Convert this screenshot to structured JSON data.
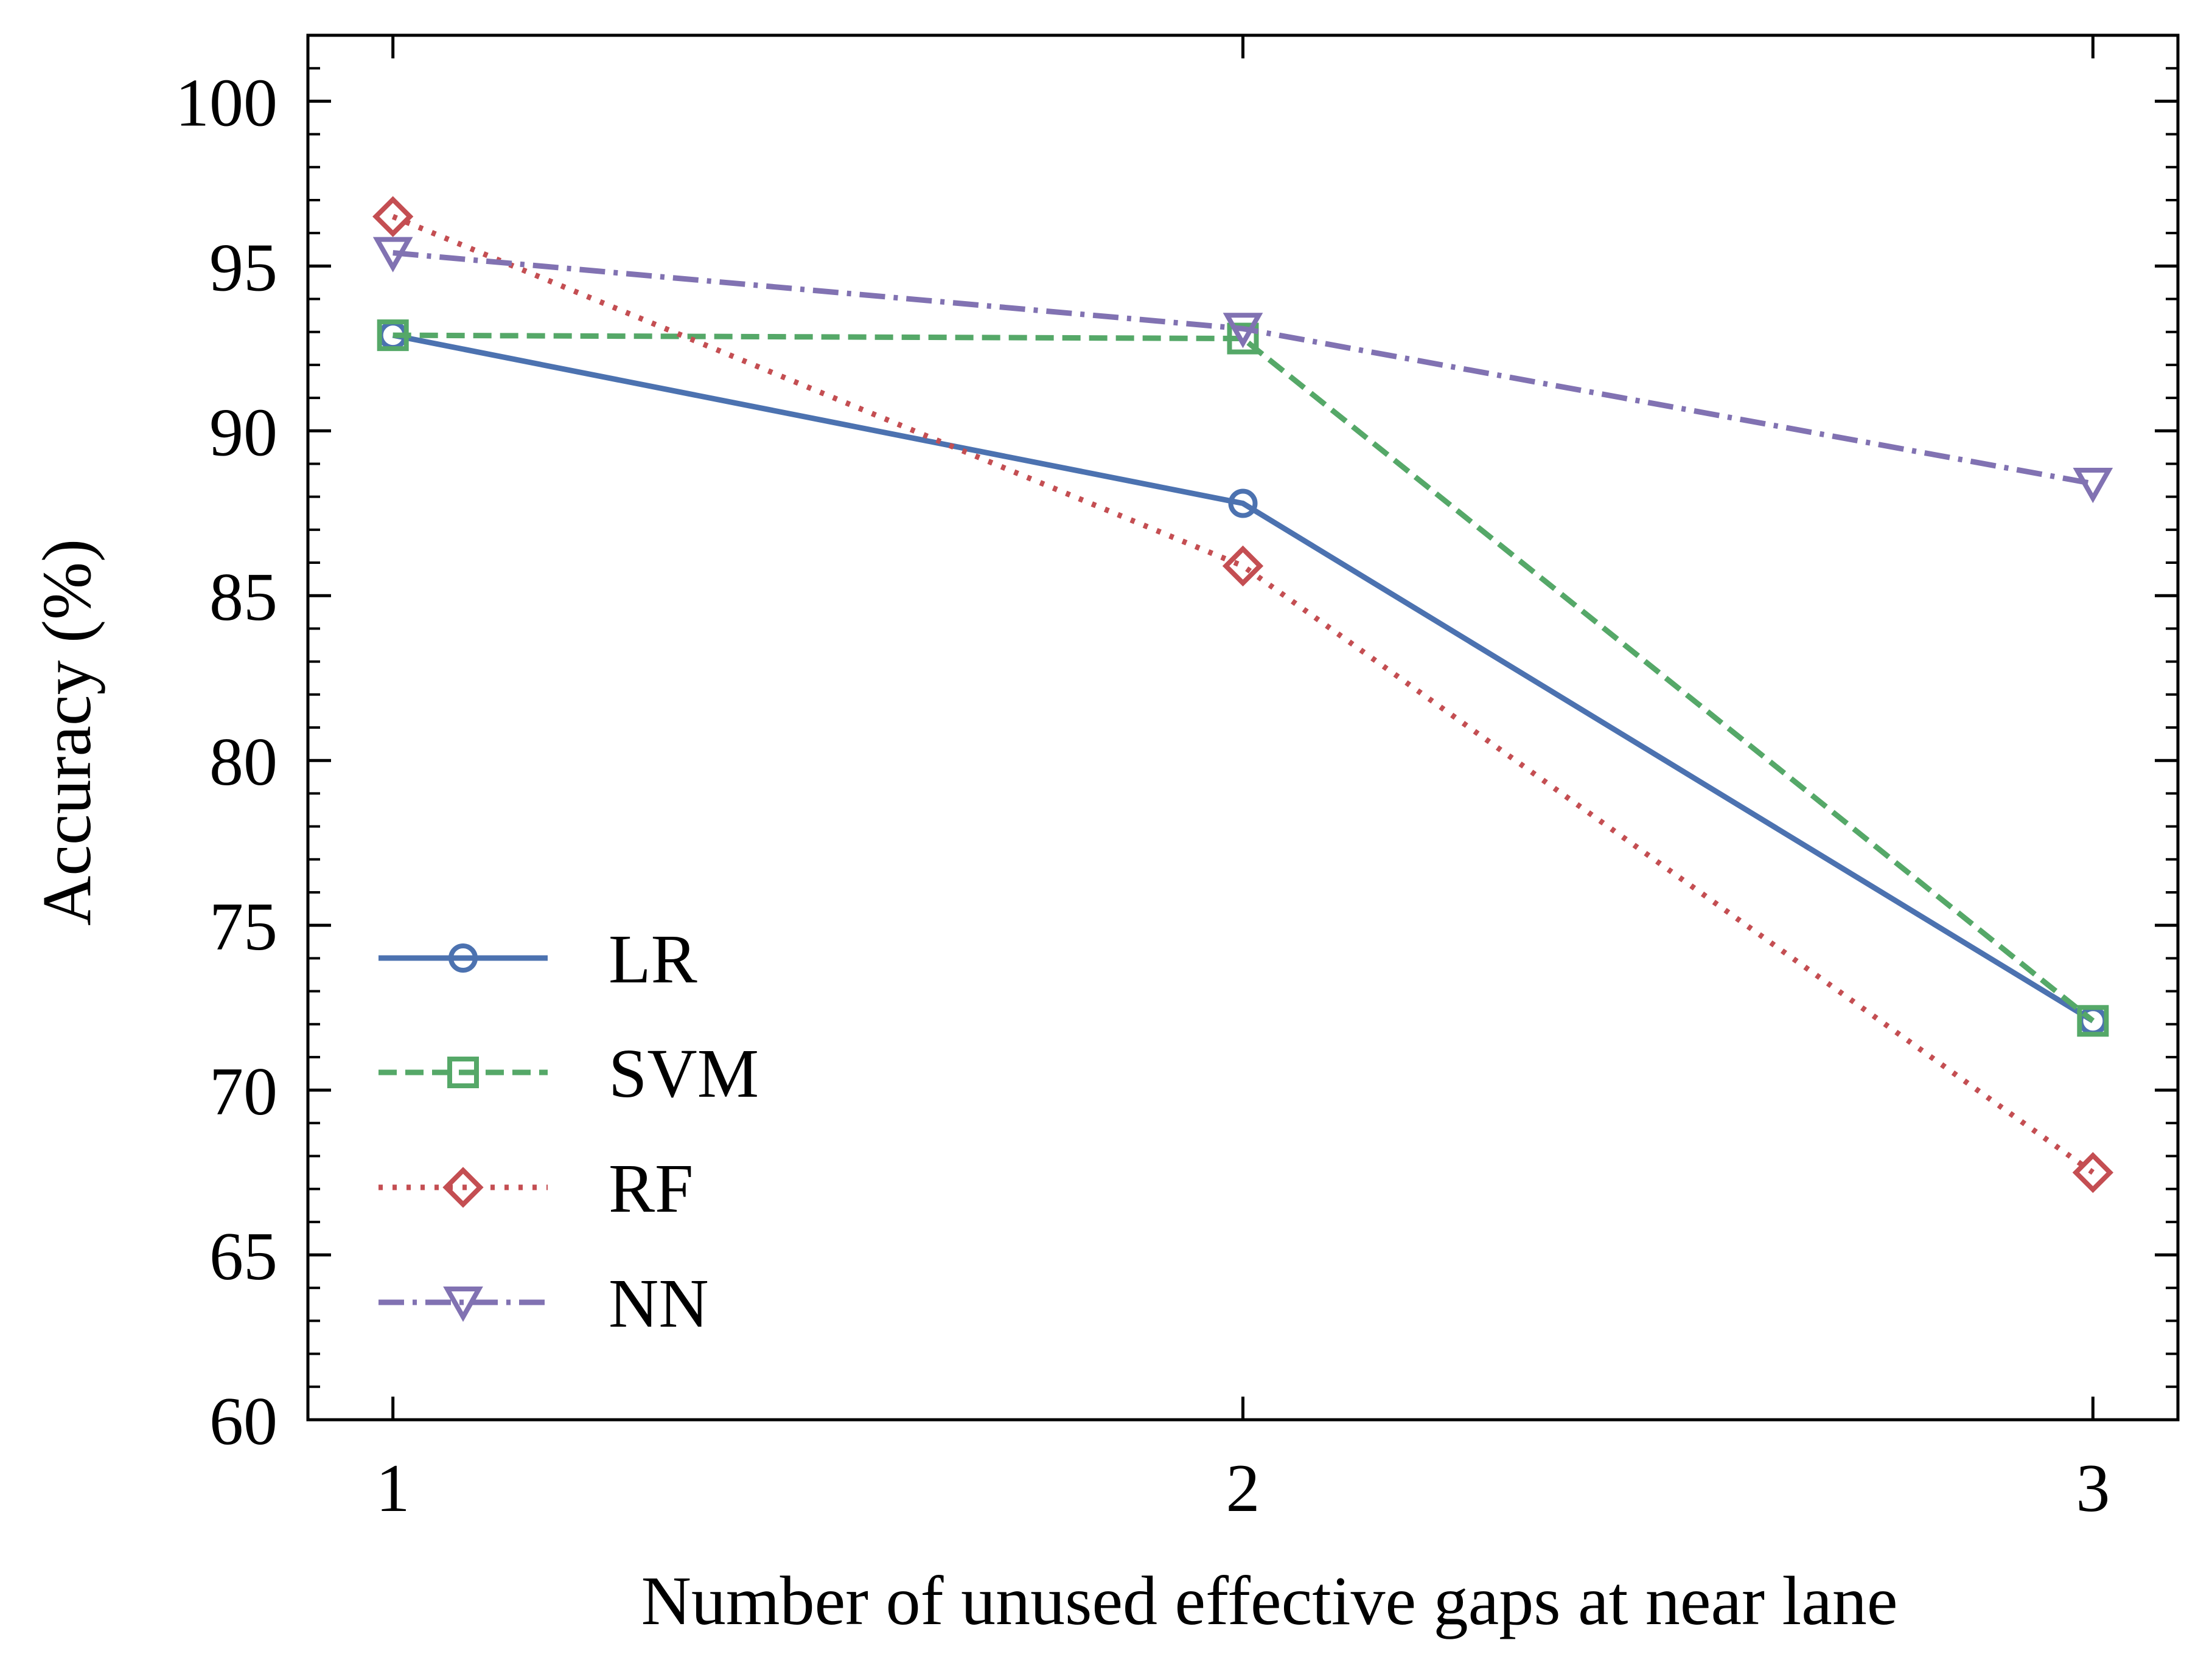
{
  "chart_data": {
    "type": "line",
    "title": "",
    "xlabel": "Number of unused effective gaps at near lane",
    "ylabel": "Accuracy (%)",
    "x": [
      1,
      2,
      3
    ],
    "xlim": [
      0.9,
      3.1
    ],
    "ylim": [
      60,
      102
    ],
    "x_ticks": [
      1,
      2,
      3
    ],
    "x_tick_labels": [
      "1",
      "2",
      "3"
    ],
    "y_ticks": [
      60,
      65,
      70,
      75,
      80,
      85,
      90,
      95,
      100
    ],
    "y_tick_labels": [
      "60",
      "65",
      "70",
      "75",
      "80",
      "85",
      "90",
      "95",
      "100"
    ],
    "grid": false,
    "legend_position": "lower-left",
    "series": [
      {
        "name": "LR",
        "values": [
          92.9,
          87.8,
          72.1
        ],
        "color": "#4C72B0",
        "line_style": "solid",
        "marker": "circle"
      },
      {
        "name": "SVM",
        "values": [
          92.9,
          92.8,
          72.1
        ],
        "color": "#55A868",
        "line_style": "dashed",
        "marker": "square"
      },
      {
        "name": "RF",
        "values": [
          96.5,
          85.9,
          67.5
        ],
        "color": "#C44E52",
        "line_style": "dotted",
        "marker": "diamond"
      },
      {
        "name": "NN",
        "values": [
          95.4,
          93.1,
          88.4
        ],
        "color": "#8172B2",
        "line_style": "dashdot",
        "marker": "triangle-down"
      }
    ]
  }
}
